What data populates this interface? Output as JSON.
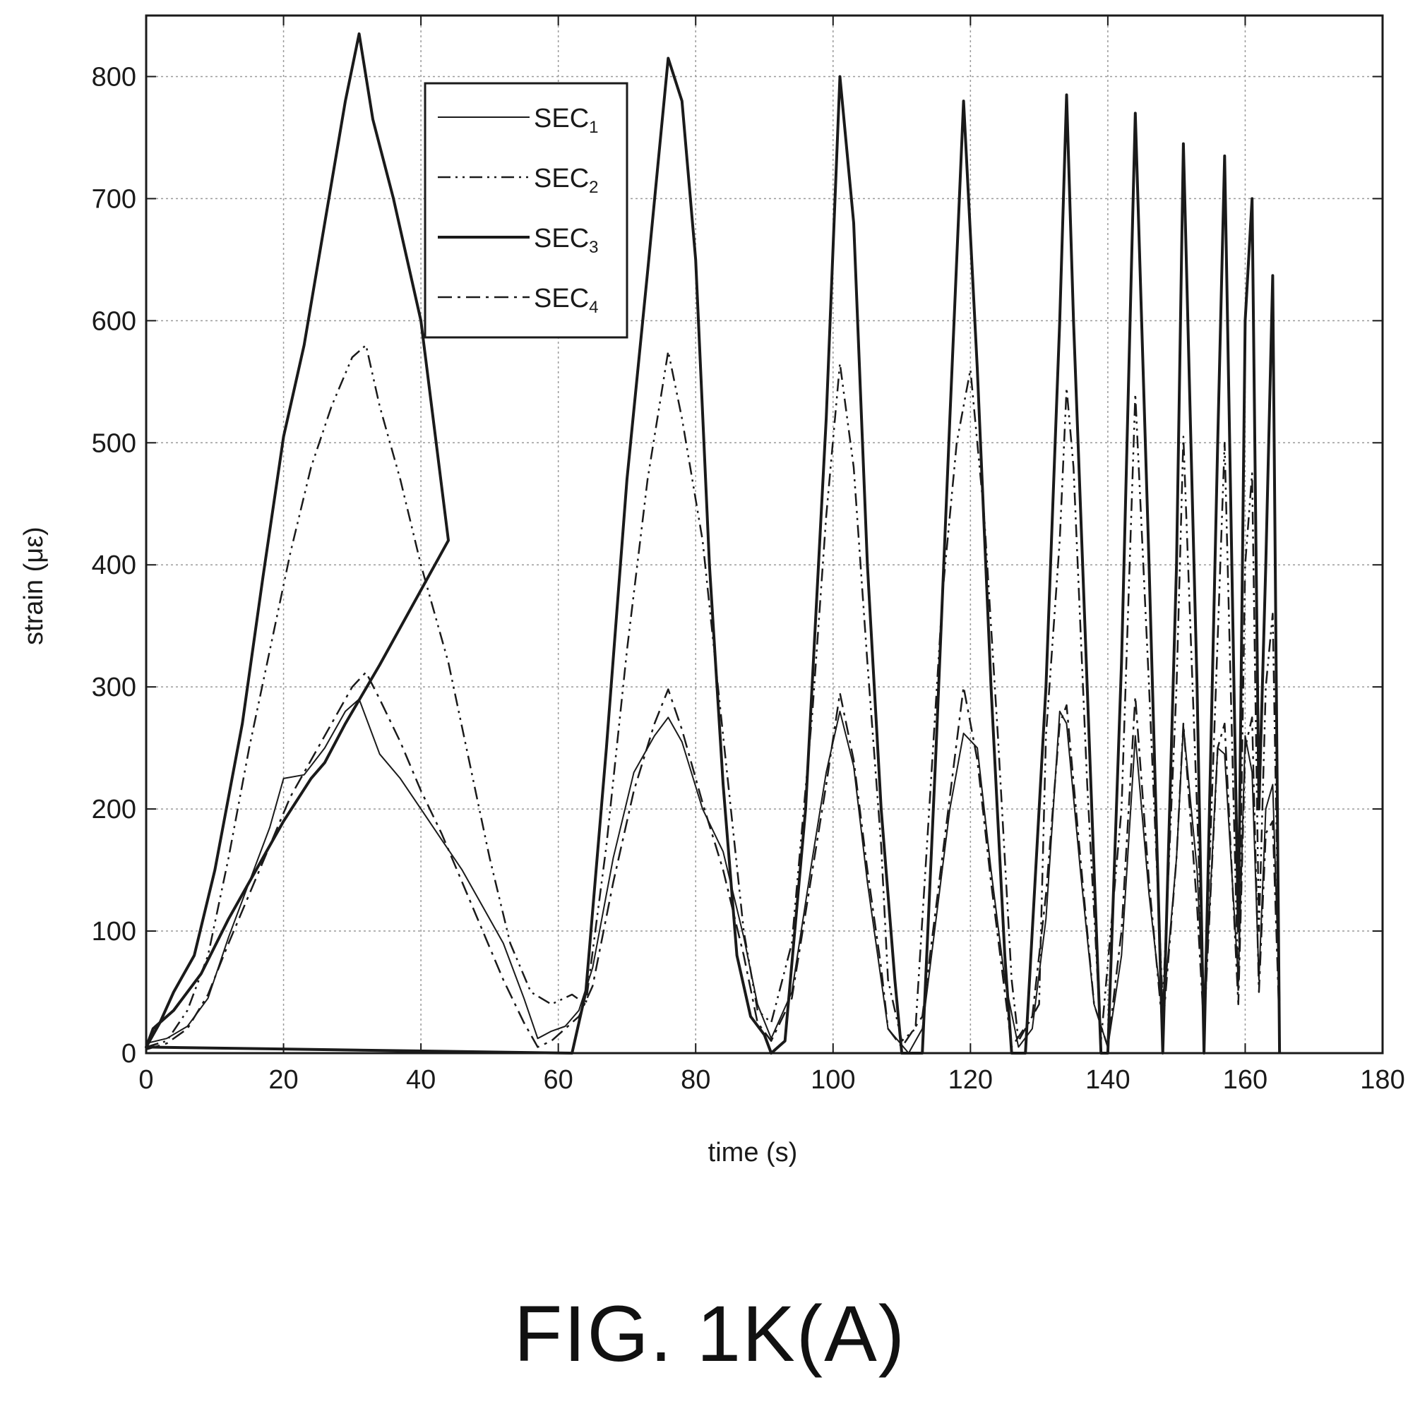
{
  "caption": "FIG. 1K(A)",
  "chart_data": {
    "type": "line",
    "xlabel": "time (s)",
    "ylabel": "strain (με)",
    "xlim": [
      0,
      180
    ],
    "ylim": [
      0,
      850
    ],
    "xticks": [
      0,
      20,
      40,
      60,
      80,
      100,
      120,
      140,
      160,
      180
    ],
    "yticks": [
      0,
      100,
      200,
      300,
      400,
      500,
      600,
      700,
      800
    ],
    "grid": true,
    "legend_position": "top-left-center",
    "colors": {
      "line": "#1a1a1a",
      "grid": "#9a9a9a"
    },
    "series": [
      {
        "name": "SEC",
        "subscript": "1",
        "style": "thin-solid",
        "points": [
          [
            0,
            8
          ],
          [
            3,
            12
          ],
          [
            6,
            22
          ],
          [
            9,
            45
          ],
          [
            12,
            95
          ],
          [
            15,
            140
          ],
          [
            18,
            185
          ],
          [
            20,
            225
          ],
          [
            23,
            228
          ],
          [
            26,
            250
          ],
          [
            29,
            280
          ],
          [
            31,
            290
          ],
          [
            34,
            245
          ],
          [
            37,
            225
          ],
          [
            40,
            200
          ],
          [
            43,
            175
          ],
          [
            46,
            150
          ],
          [
            49,
            120
          ],
          [
            52,
            90
          ],
          [
            55,
            45
          ],
          [
            57,
            12
          ],
          [
            59,
            18
          ],
          [
            61,
            22
          ],
          [
            63,
            35
          ],
          [
            65,
            70
          ],
          [
            68,
            160
          ],
          [
            71,
            230
          ],
          [
            74,
            260
          ],
          [
            76,
            275
          ],
          [
            78,
            255
          ],
          [
            81,
            200
          ],
          [
            84,
            165
          ],
          [
            87,
            95
          ],
          [
            89,
            40
          ],
          [
            91,
            12
          ],
          [
            94,
            50
          ],
          [
            97,
            160
          ],
          [
            99,
            230
          ],
          [
            101,
            280
          ],
          [
            103,
            235
          ],
          [
            105,
            140
          ],
          [
            107,
            60
          ],
          [
            108,
            20
          ],
          [
            111,
            -5
          ],
          [
            113,
            20
          ],
          [
            115,
            110
          ],
          [
            117,
            200
          ],
          [
            119,
            262
          ],
          [
            121,
            250
          ],
          [
            123,
            150
          ],
          [
            125,
            60
          ],
          [
            127,
            5
          ],
          [
            129,
            20
          ],
          [
            131,
            110
          ],
          [
            133,
            280
          ],
          [
            134,
            270
          ],
          [
            136,
            150
          ],
          [
            138,
            40
          ],
          [
            140,
            5
          ],
          [
            142,
            80
          ],
          [
            144,
            260
          ],
          [
            146,
            130
          ],
          [
            148,
            30
          ],
          [
            150,
            160
          ],
          [
            151,
            268
          ],
          [
            153,
            150
          ],
          [
            154,
            30
          ],
          [
            156,
            250
          ],
          [
            157,
            245
          ],
          [
            159,
            60
          ],
          [
            160,
            260
          ],
          [
            161,
            230
          ],
          [
            162,
            60
          ],
          [
            163,
            200
          ],
          [
            164,
            220
          ],
          [
            165,
            40
          ]
        ]
      },
      {
        "name": "SEC",
        "subscript": "2",
        "style": "dash-dot-dot",
        "points": [
          [
            0,
            5
          ],
          [
            3,
            10
          ],
          [
            6,
            35
          ],
          [
            9,
            80
          ],
          [
            12,
            160
          ],
          [
            15,
            250
          ],
          [
            18,
            330
          ],
          [
            21,
            410
          ],
          [
            24,
            480
          ],
          [
            27,
            530
          ],
          [
            30,
            570
          ],
          [
            32,
            580
          ],
          [
            34,
            530
          ],
          [
            37,
            470
          ],
          [
            40,
            400
          ],
          [
            44,
            320
          ],
          [
            47,
            240
          ],
          [
            50,
            160
          ],
          [
            53,
            90
          ],
          [
            56,
            50
          ],
          [
            59,
            40
          ],
          [
            62,
            48
          ],
          [
            64,
            40
          ],
          [
            67,
            170
          ],
          [
            70,
            330
          ],
          [
            73,
            470
          ],
          [
            76,
            575
          ],
          [
            78,
            520
          ],
          [
            81,
            420
          ],
          [
            84,
            260
          ],
          [
            87,
            100
          ],
          [
            89,
            35
          ],
          [
            91,
            25
          ],
          [
            94,
            90
          ],
          [
            97,
            280
          ],
          [
            99,
            440
          ],
          [
            101,
            565
          ],
          [
            103,
            480
          ],
          [
            105,
            320
          ],
          [
            107,
            170
          ],
          [
            108,
            60
          ],
          [
            110,
            10
          ],
          [
            112,
            20
          ],
          [
            114,
            200
          ],
          [
            116,
            380
          ],
          [
            118,
            500
          ],
          [
            120,
            560
          ],
          [
            122,
            440
          ],
          [
            124,
            260
          ],
          [
            126,
            60
          ],
          [
            127,
            10
          ],
          [
            130,
            40
          ],
          [
            131,
            260
          ],
          [
            133,
            420
          ],
          [
            134,
            545
          ],
          [
            135,
            480
          ],
          [
            137,
            220
          ],
          [
            139,
            10
          ],
          [
            142,
            200
          ],
          [
            144,
            540
          ],
          [
            146,
            300
          ],
          [
            148,
            40
          ],
          [
            150,
            300
          ],
          [
            151,
            505
          ],
          [
            153,
            200
          ],
          [
            154,
            30
          ],
          [
            156,
            340
          ],
          [
            157,
            500
          ],
          [
            159,
            50
          ],
          [
            160,
            400
          ],
          [
            161,
            475
          ],
          [
            162,
            100
          ],
          [
            163,
            300
          ],
          [
            164,
            360
          ],
          [
            165,
            40
          ]
        ]
      },
      {
        "name": "SEC",
        "subscript": "3",
        "style": "thick-solid",
        "points": [
          [
            0,
            5
          ],
          [
            2,
            25
          ],
          [
            4,
            50
          ],
          [
            7,
            80
          ],
          [
            10,
            150
          ],
          [
            14,
            270
          ],
          [
            17,
            390
          ],
          [
            20,
            505
          ],
          [
            23,
            580
          ],
          [
            26,
            680
          ],
          [
            29,
            780
          ],
          [
            31,
            835
          ],
          [
            33,
            765
          ],
          [
            36,
            700
          ],
          [
            40,
            600
          ],
          [
            44,
            420
          ],
          [
            34,
            318
          ],
          [
            29,
            270
          ],
          [
            26,
            238
          ],
          [
            24,
            225
          ],
          [
            20,
            190
          ],
          [
            16,
            150
          ],
          [
            12,
            110
          ],
          [
            8,
            65
          ],
          [
            4,
            35
          ],
          [
            1,
            20
          ],
          [
            0,
            5
          ],
          [
            62,
            0
          ],
          [
            64,
            50
          ],
          [
            67,
            250
          ],
          [
            70,
            470
          ],
          [
            73,
            640
          ],
          [
            76,
            815
          ],
          [
            78,
            780
          ],
          [
            80,
            650
          ],
          [
            82,
            400
          ],
          [
            84,
            220
          ],
          [
            86,
            80
          ],
          [
            88,
            30
          ],
          [
            90,
            15
          ],
          [
            91,
            0
          ],
          [
            93,
            10
          ],
          [
            96,
            200
          ],
          [
            99,
            520
          ],
          [
            101,
            800
          ],
          [
            103,
            680
          ],
          [
            105,
            400
          ],
          [
            107,
            200
          ],
          [
            109,
            60
          ],
          [
            110,
            0
          ],
          [
            113,
            0
          ],
          [
            115,
            250
          ],
          [
            117,
            520
          ],
          [
            119,
            780
          ],
          [
            121,
            560
          ],
          [
            123,
            300
          ],
          [
            125,
            80
          ],
          [
            126,
            0
          ],
          [
            128,
            0
          ],
          [
            131,
            300
          ],
          [
            133,
            600
          ],
          [
            134,
            785
          ],
          [
            135,
            600
          ],
          [
            137,
            300
          ],
          [
            139,
            0
          ],
          [
            140,
            0
          ],
          [
            142,
            320
          ],
          [
            144,
            770
          ],
          [
            146,
            400
          ],
          [
            148,
            0
          ],
          [
            150,
            400
          ],
          [
            151,
            745
          ],
          [
            153,
            300
          ],
          [
            154,
            0
          ],
          [
            156,
            500
          ],
          [
            157,
            735
          ],
          [
            159,
            100
          ],
          [
            160,
            600
          ],
          [
            161,
            700
          ],
          [
            162,
            200
          ],
          [
            163,
            400
          ],
          [
            164,
            637
          ],
          [
            165,
            0
          ]
        ]
      },
      {
        "name": "SEC",
        "subscript": "4",
        "style": "dash-dot",
        "points": [
          [
            0,
            3
          ],
          [
            3,
            8
          ],
          [
            6,
            20
          ],
          [
            9,
            48
          ],
          [
            12,
            90
          ],
          [
            15,
            130
          ],
          [
            18,
            170
          ],
          [
            21,
            210
          ],
          [
            24,
            240
          ],
          [
            27,
            270
          ],
          [
            30,
            300
          ],
          [
            32,
            312
          ],
          [
            34,
            290
          ],
          [
            37,
            255
          ],
          [
            40,
            215
          ],
          [
            43,
            180
          ],
          [
            46,
            140
          ],
          [
            49,
            100
          ],
          [
            52,
            60
          ],
          [
            55,
            25
          ],
          [
            57,
            5
          ],
          [
            59,
            10
          ],
          [
            61,
            20
          ],
          [
            63,
            30
          ],
          [
            65,
            55
          ],
          [
            68,
            140
          ],
          [
            71,
            215
          ],
          [
            74,
            270
          ],
          [
            76,
            298
          ],
          [
            78,
            265
          ],
          [
            81,
            205
          ],
          [
            84,
            150
          ],
          [
            87,
            80
          ],
          [
            89,
            25
          ],
          [
            91,
            10
          ],
          [
            94,
            45
          ],
          [
            97,
            150
          ],
          [
            99,
            220
          ],
          [
            101,
            295
          ],
          [
            103,
            240
          ],
          [
            105,
            150
          ],
          [
            107,
            70
          ],
          [
            108,
            20
          ],
          [
            110,
            5
          ],
          [
            113,
            30
          ],
          [
            115,
            120
          ],
          [
            117,
            210
          ],
          [
            119,
            300
          ],
          [
            121,
            240
          ],
          [
            123,
            140
          ],
          [
            125,
            50
          ],
          [
            126,
            5
          ],
          [
            129,
            30
          ],
          [
            131,
            130
          ],
          [
            133,
            270
          ],
          [
            134,
            285
          ],
          [
            136,
            160
          ],
          [
            138,
            40
          ],
          [
            140,
            5
          ],
          [
            142,
            100
          ],
          [
            144,
            292
          ],
          [
            146,
            140
          ],
          [
            148,
            20
          ],
          [
            150,
            160
          ],
          [
            151,
            270
          ],
          [
            153,
            120
          ],
          [
            154,
            20
          ],
          [
            156,
            250
          ],
          [
            157,
            270
          ],
          [
            159,
            40
          ],
          [
            160,
            250
          ],
          [
            161,
            275
          ],
          [
            162,
            50
          ],
          [
            163,
            180
          ],
          [
            164,
            190
          ],
          [
            165,
            20
          ]
        ]
      }
    ]
  }
}
